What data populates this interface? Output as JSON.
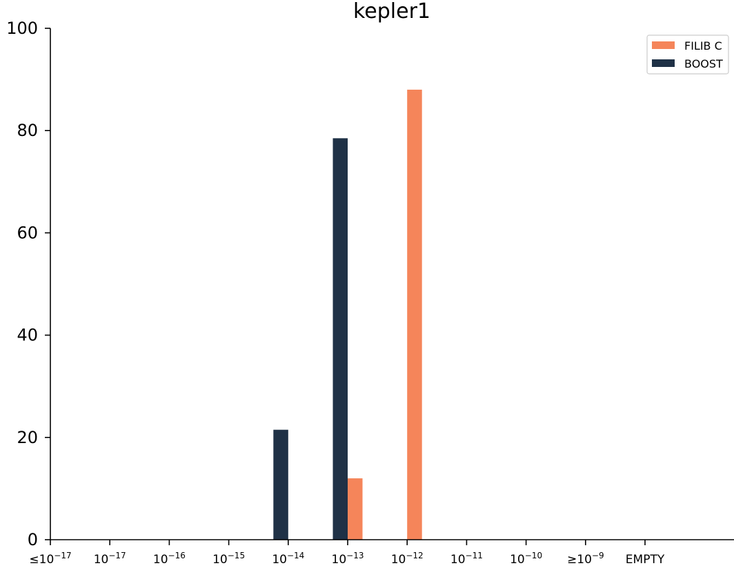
{
  "chart_data": {
    "type": "bar",
    "title": "kepler1",
    "xlabel": "",
    "ylabel": "",
    "ylim": [
      0,
      100
    ],
    "yticks": [
      "0",
      "20",
      "40",
      "60",
      "80",
      "100"
    ],
    "categories": [
      {
        "base": "",
        "exp": "",
        "prefix": "≤",
        "text_tail": "10",
        "full": "≤10-17"
      },
      {
        "base": "10",
        "exp": "-17",
        "prefix": "",
        "full": "10-17"
      },
      {
        "base": "10",
        "exp": "-16",
        "prefix": "",
        "full": "10-16"
      },
      {
        "base": "10",
        "exp": "-15",
        "prefix": "",
        "full": "10-15"
      },
      {
        "base": "10",
        "exp": "-14",
        "prefix": "",
        "full": "10-14"
      },
      {
        "base": "10",
        "exp": "-13",
        "prefix": "",
        "full": "10-13"
      },
      {
        "base": "10",
        "exp": "-12",
        "prefix": "",
        "full": "10-12"
      },
      {
        "base": "10",
        "exp": "-11",
        "prefix": "",
        "full": "10-11"
      },
      {
        "base": "10",
        "exp": "-10",
        "prefix": "",
        "full": "10-10"
      },
      {
        "base": "10",
        "exp": "-9",
        "prefix": "≥",
        "full": "≥10-9"
      },
      {
        "base": "EMPTY",
        "exp": "",
        "prefix": "",
        "full": "EMPTY"
      }
    ],
    "series": [
      {
        "name": "FILIB C",
        "color": "#f5855a",
        "values": [
          0,
          0,
          0,
          0,
          0,
          12,
          88,
          0,
          0,
          0,
          0
        ]
      },
      {
        "name": "BOOST",
        "color": "#1f3146",
        "values": [
          0,
          0,
          0,
          0,
          21.5,
          78.5,
          0,
          0,
          0,
          0,
          0
        ]
      }
    ],
    "legend": "top-right",
    "grid": false
  }
}
